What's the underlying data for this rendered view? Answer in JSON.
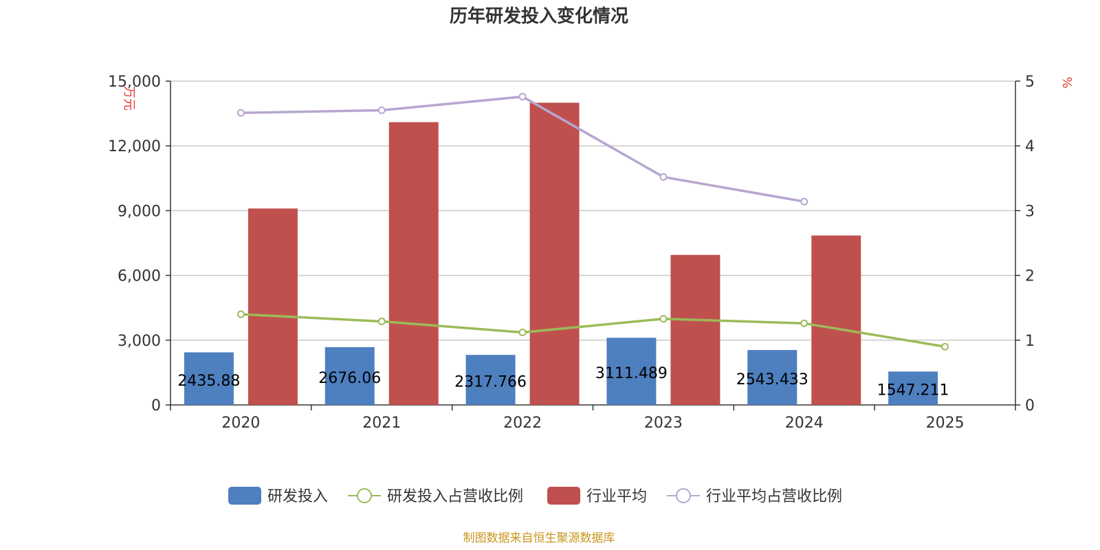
{
  "chart_data": {
    "type": "bar",
    "title": "历年研发投入变化情况",
    "categories": [
      "2020",
      "2021",
      "2022",
      "2023",
      "2024",
      "2025"
    ],
    "y_left": {
      "unit": "万元",
      "min": 0,
      "max": 15000,
      "ticks": [
        "0",
        "3,000",
        "6,000",
        "9,000",
        "12,000",
        "15,000"
      ]
    },
    "y_right": {
      "unit": "%",
      "min": 0,
      "max": 5,
      "ticks": [
        "0",
        "1",
        "2",
        "3",
        "4",
        "5"
      ]
    },
    "series": [
      {
        "name": "研发投入",
        "kind": "bar",
        "axis": "left",
        "color": "#4e7fbf",
        "values": [
          2435.88,
          2676.06,
          2317.766,
          3111.489,
          2543.433,
          1547.211
        ],
        "labels": [
          "2435.88",
          "2676.06",
          "2317.766",
          "3111.489",
          "2543.433",
          "1547.211"
        ]
      },
      {
        "name": "研发投入占营收比例",
        "kind": "line",
        "axis": "right",
        "color": "#9bbb59",
        "values": [
          1.4,
          1.29,
          1.12,
          1.33,
          1.26,
          0.9
        ]
      },
      {
        "name": "行业平均",
        "kind": "bar",
        "axis": "left",
        "color": "#c0504d",
        "values": [
          9100,
          13100,
          14000,
          6950,
          7850,
          null
        ]
      },
      {
        "name": "行业平均占营收比例",
        "kind": "line",
        "axis": "right",
        "color": "#b6a6d0",
        "values": [
          4.51,
          4.55,
          4.76,
          3.52,
          3.14,
          null
        ]
      }
    ],
    "grid": true,
    "legend_position": "bottom"
  },
  "source_note": "制图数据来自恒生聚源数据库"
}
